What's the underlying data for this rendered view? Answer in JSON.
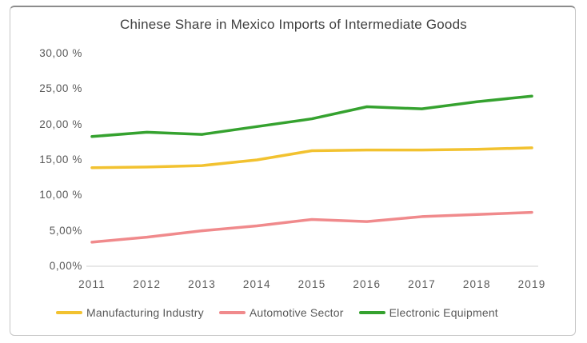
{
  "chart_data": {
    "type": "line",
    "title": "Chinese Share in Mexico Imports of Intermediate Goods",
    "categories": [
      "2011",
      "2012",
      "2013",
      "2014",
      "2015",
      "2016",
      "2017",
      "2018",
      "2019"
    ],
    "series": [
      {
        "name": "Manufacturing Industry",
        "color": "#f2c230",
        "values": [
          13.9,
          14.0,
          14.2,
          15.0,
          16.3,
          16.4,
          16.4,
          16.5,
          16.7
        ]
      },
      {
        "name": "Automotive Sector",
        "color": "#f08a8c",
        "values": [
          3.4,
          4.1,
          5.0,
          5.7,
          6.6,
          6.3,
          7.0,
          7.3,
          7.6
        ]
      },
      {
        "name": "Electronic Equipment",
        "color": "#35a22f",
        "values": [
          18.3,
          18.9,
          18.6,
          19.7,
          20.8,
          22.5,
          22.2,
          23.2,
          24.0
        ]
      }
    ],
    "y_axis": {
      "min": 0,
      "max": 30,
      "ticks": [
        {
          "value": 0,
          "label": "0,00%"
        },
        {
          "value": 5,
          "label": "5,00%"
        },
        {
          "value": 10,
          "label": "10,00 %"
        },
        {
          "value": 15,
          "label": "15,00 %"
        },
        {
          "value": 20,
          "label": "20,00 %"
        },
        {
          "value": 25,
          "label": "25,00 %"
        },
        {
          "value": 30,
          "label": "30,00 %"
        }
      ]
    },
    "xlabel": "",
    "ylabel": "",
    "grid": false,
    "legend_position": "bottom"
  },
  "colors": {
    "axis_line": "#d9d9d9",
    "tick_text": "#595959",
    "title_text": "#3f3f3f",
    "card_border": "#c6c6c6"
  }
}
